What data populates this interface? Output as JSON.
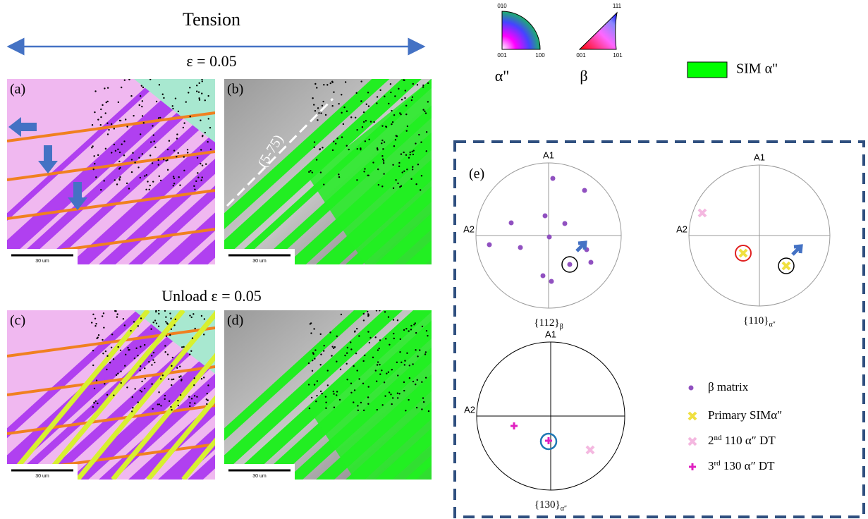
{
  "header": {
    "title": "Tension",
    "strain": "ε = 0.05",
    "unload": "Unload ε = 0.05"
  },
  "panels": [
    {
      "label": "(a)",
      "scale": "30 um"
    },
    {
      "label": "(b)",
      "scale": "30 um",
      "annotation": "(5-75)"
    },
    {
      "label": "(c)",
      "scale": "30 um"
    },
    {
      "label": "(d)",
      "scale": "30 um"
    }
  ],
  "ipf": [
    {
      "corners": [
        "010",
        "001",
        "100"
      ],
      "name": "α\""
    },
    {
      "corners": [
        "111",
        "001",
        "101"
      ],
      "name": "β"
    }
  ],
  "legend_sim": "SIM α\"",
  "panel_e": {
    "label": "(e)",
    "pole_figures": [
      {
        "axis_top": "A1",
        "axis_left": "A2",
        "caption": "{112}",
        "caption_sub": "β"
      },
      {
        "axis_top": "A1",
        "axis_left": "A2",
        "caption": "{110}",
        "caption_sub": "α″"
      },
      {
        "axis_top": "A1",
        "axis_left": "A2",
        "caption": "{130}",
        "caption_sub": "α″"
      }
    ],
    "legend": [
      {
        "text": "β matrix"
      },
      {
        "text": "Primary SIMα″"
      },
      {
        "sup_lead": "2",
        "sup": "nd",
        "text": " 110 α″ DT"
      },
      {
        "sup_lead": "3",
        "sup": "rd",
        "text": " 130 α″ DT"
      }
    ]
  }
}
